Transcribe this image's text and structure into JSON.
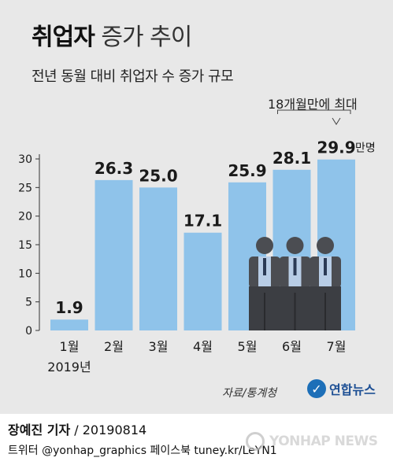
{
  "header": {
    "title_bold": "취업자",
    "title_light": "증가 추이",
    "subtitle": "전년 동월 대비 취업자 수 증가 규모"
  },
  "annotation": "18개월만에 최대",
  "unit_label": "만명",
  "year_label": "2019년",
  "footer": {
    "source": "자료/통계청",
    "logo_text": "연합뉴스",
    "reporter": "장예진 기자",
    "date": " / 20190814",
    "social": "트위터 @yonhap_graphics  페이스북 tuney.kr/LeYN1",
    "watermark": "YONHAP NEWS"
  },
  "colors": {
    "bar": "#8fc3ea",
    "background": "#e8e8e8",
    "figure_suit": "#4b4d52",
    "figure_shirt": "#b8cde6"
  },
  "chart_data": {
    "type": "bar",
    "categories": [
      "1월",
      "2월",
      "3월",
      "4월",
      "5월",
      "6월",
      "7월"
    ],
    "values": [
      1.9,
      26.3,
      25.0,
      17.1,
      25.9,
      28.1,
      29.9
    ],
    "value_labels": [
      "1.9",
      "26.3",
      "25.0",
      "17.1",
      "25.9",
      "28.1",
      "29.9"
    ],
    "ylim": [
      0,
      30
    ],
    "yticks": [
      0,
      5,
      10,
      15,
      20,
      25,
      30
    ],
    "ytick_labels": [
      "0",
      "5",
      "10",
      "15",
      "20",
      "25",
      "30"
    ],
    "grid": false
  }
}
